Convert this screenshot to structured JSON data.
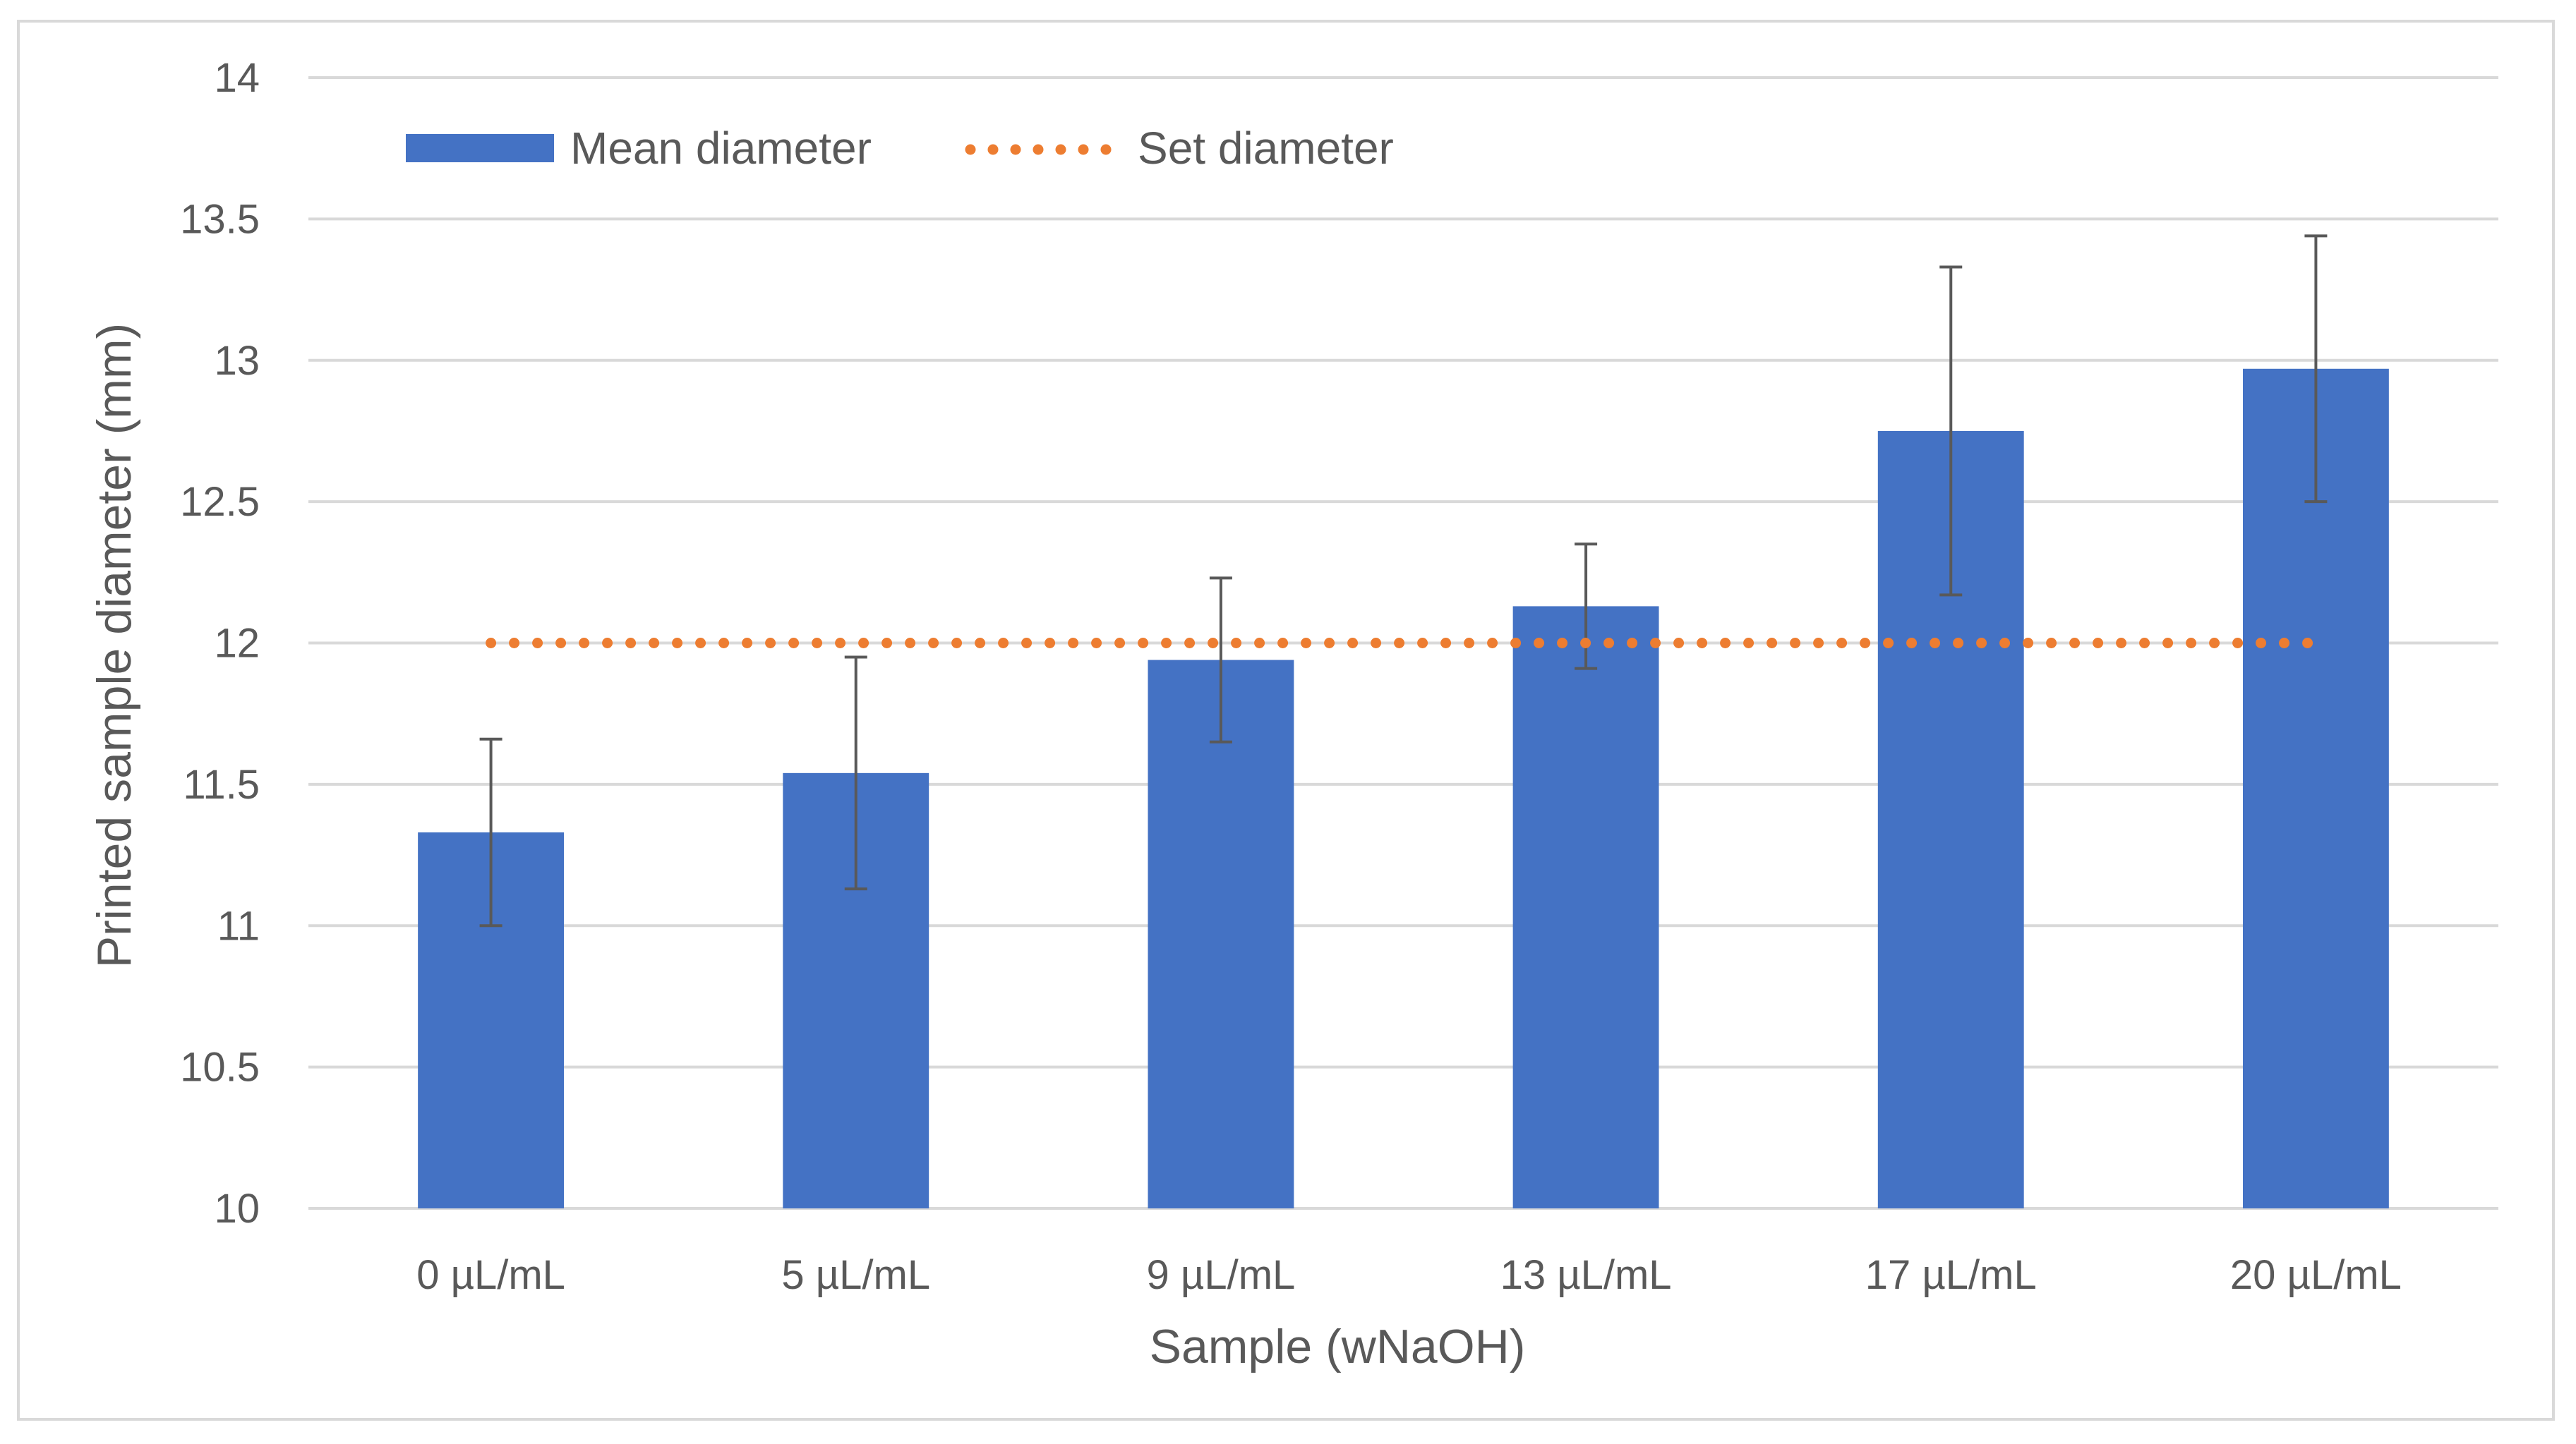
{
  "chart_data": {
    "type": "bar",
    "title": "",
    "xlabel": "Sample (wNaOH)",
    "ylabel": "Printed sample diameter (mm)",
    "categories": [
      "0 µL/mL",
      "5 µL/mL",
      "9 µL/mL",
      "13 µL/mL",
      "17 µL/mL",
      "20 µL/mL"
    ],
    "ylim": [
      10,
      14
    ],
    "yticks": [
      "10",
      "10.5",
      "11",
      "11.5",
      "12",
      "12.5",
      "13",
      "13.5",
      "14"
    ],
    "grid": true,
    "legend_position": "top-left",
    "series": [
      {
        "name": "Mean diameter",
        "kind": "bar",
        "color": "#4472C4",
        "values": [
          11.33,
          11.54,
          11.94,
          12.13,
          12.75,
          12.97
        ],
        "error": [
          0.33,
          0.41,
          0.29,
          0.22,
          0.58,
          0.47
        ]
      },
      {
        "name": "Set diameter",
        "kind": "dotted-line",
        "color": "#ED7D31",
        "values": [
          12,
          12,
          12,
          12,
          12,
          12
        ]
      }
    ]
  }
}
